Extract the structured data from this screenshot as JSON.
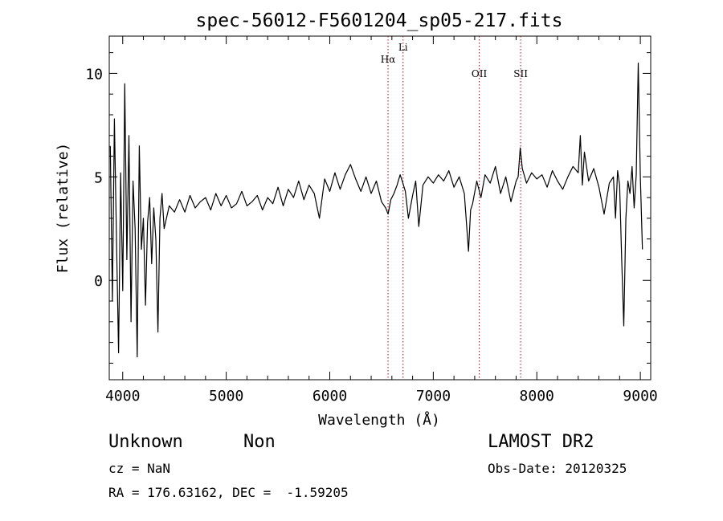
{
  "chart_data": {
    "type": "line",
    "title": "spec-56012-F5601204_sp05-217.fits",
    "xlabel": "Wavelength (Å)",
    "ylabel": "Flux (relative)",
    "xlim": [
      3870,
      9100
    ],
    "ylim": [
      -4.8,
      11.8
    ],
    "x_ticks": [
      4000,
      5000,
      6000,
      7000,
      8000,
      9000
    ],
    "y_ticks": [
      0,
      5,
      10
    ],
    "grid": false,
    "line_color": "#000000",
    "line_marker_color": "#a01010",
    "line_markers": [
      {
        "label": "Hα",
        "x": 6563
      },
      {
        "label": "Li",
        "x": 6708
      },
      {
        "label": "OII",
        "x": 7444
      },
      {
        "label": "SII",
        "x": 7844
      }
    ],
    "series": [
      {
        "x": [
          3880,
          3900,
          3920,
          3940,
          3960,
          3980,
          4000,
          4020,
          4040,
          4060,
          4080,
          4100,
          4120,
          4140,
          4160,
          4180,
          4200,
          4220,
          4240,
          4260,
          4280,
          4300,
          4320,
          4340,
          4360,
          4380,
          4400,
          4450,
          4500,
          4550,
          4600,
          4650,
          4700,
          4750,
          4800,
          4850,
          4900,
          4950,
          5000,
          5050,
          5100,
          5150,
          5200,
          5250,
          5300,
          5350,
          5400,
          5450,
          5500,
          5550,
          5600,
          5650,
          5700,
          5750,
          5800,
          5850,
          5900,
          5950,
          6000,
          6050,
          6100,
          6150,
          6200,
          6250,
          6300,
          6350,
          6400,
          6450,
          6500,
          6540,
          6563,
          6590,
          6620,
          6650,
          6680,
          6700,
          6730,
          6760,
          6800,
          6830,
          6860,
          6900,
          6950,
          7000,
          7050,
          7100,
          7150,
          7200,
          7250,
          7300,
          7340,
          7360,
          7380,
          7420,
          7460,
          7500,
          7550,
          7600,
          7650,
          7700,
          7750,
          7800,
          7820,
          7840,
          7860,
          7900,
          7950,
          8000,
          8050,
          8100,
          8150,
          8200,
          8250,
          8300,
          8350,
          8400,
          8420,
          8440,
          8460,
          8500,
          8550,
          8600,
          8650,
          8700,
          8740,
          8760,
          8780,
          8800,
          8820,
          8840,
          8860,
          8880,
          8900,
          8920,
          8940,
          8960,
          8980,
          9000,
          9020
        ],
        "y": [
          6.5,
          -1.0,
          7.8,
          2.0,
          -3.5,
          5.2,
          -0.5,
          9.5,
          1.0,
          7.0,
          -2.0,
          4.8,
          2.5,
          -3.7,
          6.5,
          1.5,
          3.0,
          -1.2,
          2.8,
          4.0,
          0.8,
          3.5,
          2.0,
          -2.5,
          3.0,
          4.2,
          2.5,
          3.6,
          3.3,
          3.9,
          3.3,
          4.1,
          3.5,
          3.8,
          4.0,
          3.4,
          4.2,
          3.6,
          4.1,
          3.5,
          3.7,
          4.3,
          3.6,
          3.8,
          4.1,
          3.4,
          4.0,
          3.7,
          4.5,
          3.6,
          4.4,
          4.0,
          4.8,
          3.9,
          4.6,
          4.2,
          3.0,
          4.9,
          4.3,
          5.2,
          4.4,
          5.1,
          5.6,
          4.9,
          4.3,
          5.0,
          4.2,
          4.8,
          3.8,
          3.5,
          3.2,
          3.9,
          4.2,
          4.6,
          5.1,
          4.8,
          4.3,
          3.0,
          4.1,
          4.8,
          2.6,
          4.6,
          5.0,
          4.7,
          5.1,
          4.8,
          5.3,
          4.5,
          5.0,
          4.2,
          1.4,
          3.4,
          3.7,
          4.8,
          4.0,
          5.1,
          4.7,
          5.5,
          4.2,
          5.0,
          3.8,
          4.8,
          5.0,
          6.4,
          5.4,
          4.7,
          5.2,
          4.9,
          5.1,
          4.5,
          5.3,
          4.8,
          4.4,
          5.0,
          5.5,
          5.2,
          7.0,
          4.6,
          6.2,
          4.8,
          5.4,
          4.5,
          3.2,
          4.7,
          5.0,
          3.0,
          5.3,
          4.6,
          1.0,
          -2.2,
          3.0,
          4.8,
          4.2,
          5.5,
          3.5,
          5.1,
          10.5,
          5.0,
          1.5
        ]
      }
    ]
  },
  "info": {
    "class_label": "Unknown",
    "subclass_label": "Non",
    "survey": "LAMOST DR2",
    "cz": "cz = NaN",
    "obs_date": "Obs-Date: 20120325",
    "coords": "RA = 176.63162, DEC =  -1.59205"
  }
}
